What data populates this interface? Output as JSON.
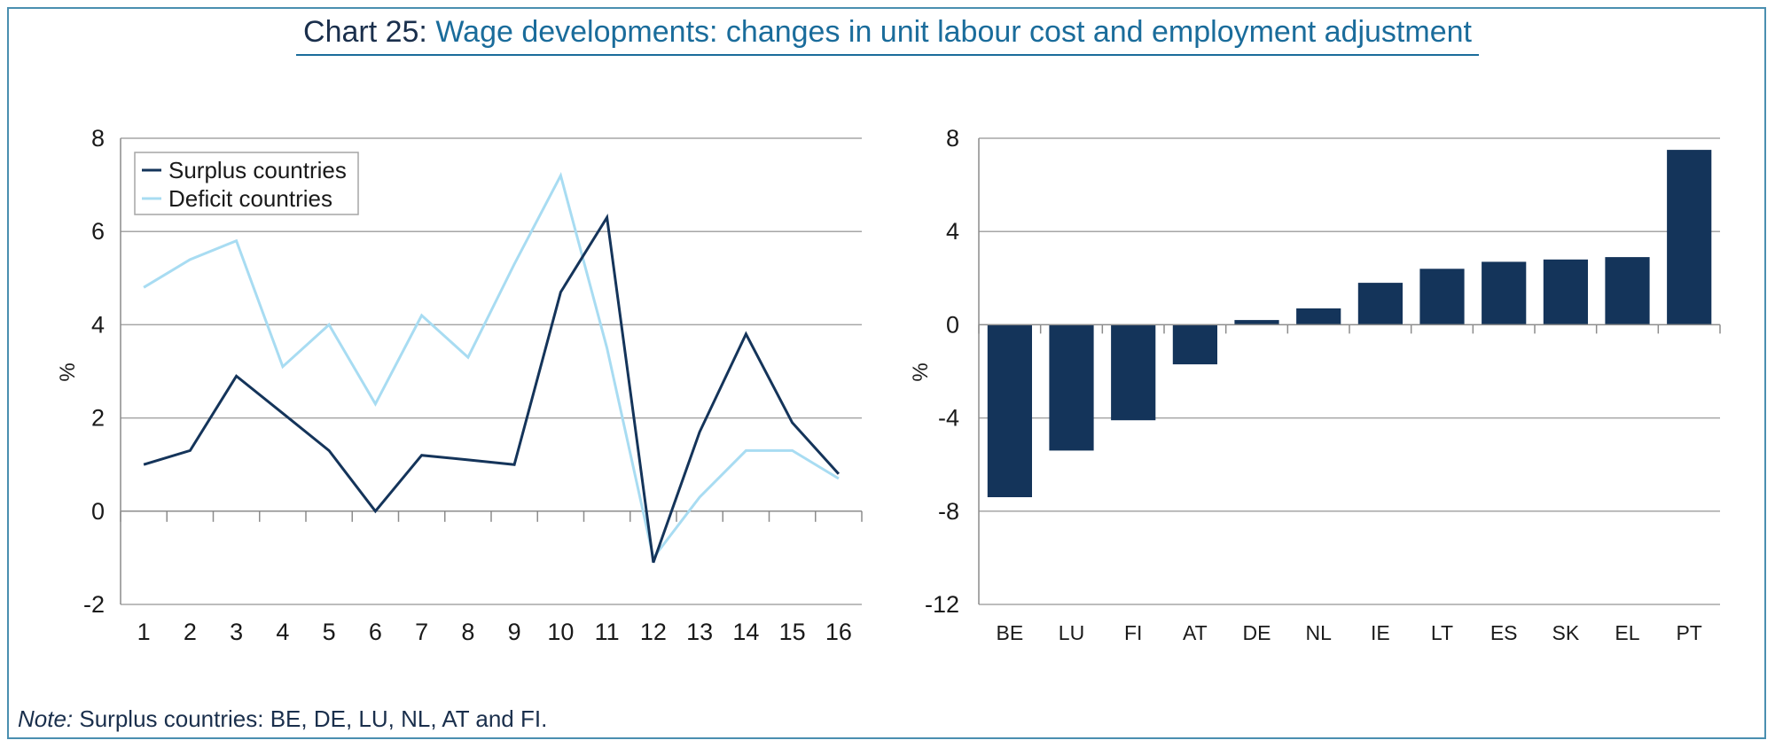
{
  "title": {
    "prefix": "Chart 25: ",
    "main": "Wage developments: changes in unit labour cost and employment adjustment"
  },
  "note": {
    "label": "Note:",
    "text": " Surplus countries: BE, DE, LU, NL, AT and FI."
  },
  "colors": {
    "dark": "#14345a",
    "light": "#a8dcf2",
    "grid": "#a6a6a6",
    "axis": "#8c8c8c",
    "frame": "#4a8fb0"
  },
  "chart_data": [
    {
      "type": "line",
      "title": "",
      "ylabel": "%",
      "xlabel": "",
      "ylim": [
        -2,
        8
      ],
      "yticks": [
        -2,
        0,
        2,
        4,
        6,
        8
      ],
      "x": [
        1,
        2,
        3,
        4,
        5,
        6,
        7,
        8,
        9,
        10,
        11,
        12,
        13,
        14,
        15,
        16
      ],
      "grid": true,
      "legend": "top-left",
      "series": [
        {
          "name": "Surplus countries",
          "color": "#14345a",
          "values": [
            1.0,
            1.3,
            2.9,
            2.1,
            1.3,
            0.0,
            1.2,
            1.1,
            1.0,
            4.7,
            6.3,
            -1.1,
            1.7,
            3.8,
            1.9,
            0.8
          ]
        },
        {
          "name": "Deficit countries",
          "color": "#a8dcf2",
          "values": [
            4.8,
            5.4,
            5.8,
            3.1,
            4.0,
            2.3,
            4.2,
            3.3,
            5.3,
            7.2,
            3.5,
            -1.0,
            0.3,
            1.3,
            1.3,
            0.7
          ]
        }
      ]
    },
    {
      "type": "bar",
      "title": "",
      "ylabel": "%",
      "xlabel": "",
      "ylim": [
        -12,
        8
      ],
      "yticks": [
        -12,
        -8,
        -4,
        0,
        4,
        8
      ],
      "categories": [
        "BE",
        "LU",
        "FI",
        "AT",
        "DE",
        "NL",
        "IE",
        "LT",
        "ES",
        "SK",
        "EL",
        "PT"
      ],
      "values": [
        -7.4,
        -5.4,
        -4.1,
        -1.7,
        0.2,
        0.7,
        1.8,
        2.4,
        2.7,
        2.8,
        2.9,
        7.5
      ],
      "grid": true,
      "color": "#14345a"
    }
  ]
}
